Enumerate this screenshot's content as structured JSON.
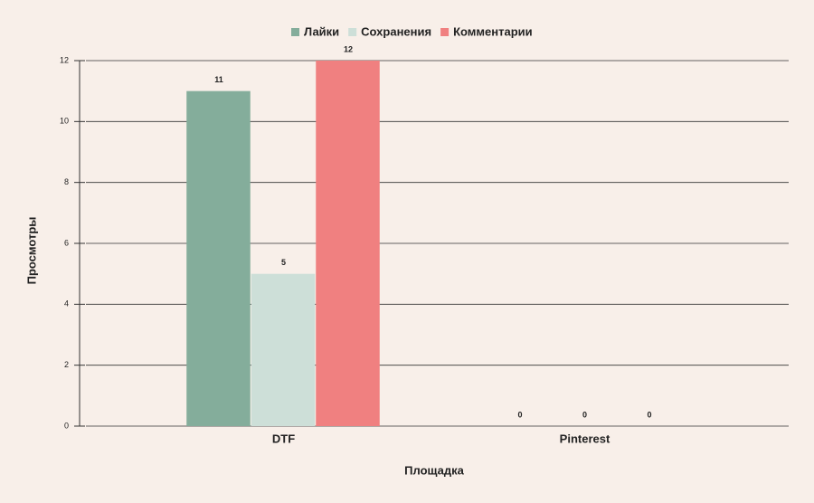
{
  "chart_data": {
    "type": "bar",
    "x_label": "Площадка",
    "y_label": "Просмотры",
    "categories": [
      "DTF",
      "Pinterest"
    ],
    "series": [
      {
        "name": "Лайки",
        "color": "#84ad9b",
        "values": [
          11,
          0
        ]
      },
      {
        "name": "Сохранения",
        "color": "#cddfd8",
        "values": [
          5,
          0
        ]
      },
      {
        "name": "Комментарии",
        "color": "#f08080",
        "values": [
          12,
          0
        ]
      }
    ],
    "ylim": [
      0,
      12
    ],
    "yticks": [
      0,
      2,
      4,
      6,
      8,
      10,
      12
    ],
    "grid": true,
    "legend": "top"
  }
}
